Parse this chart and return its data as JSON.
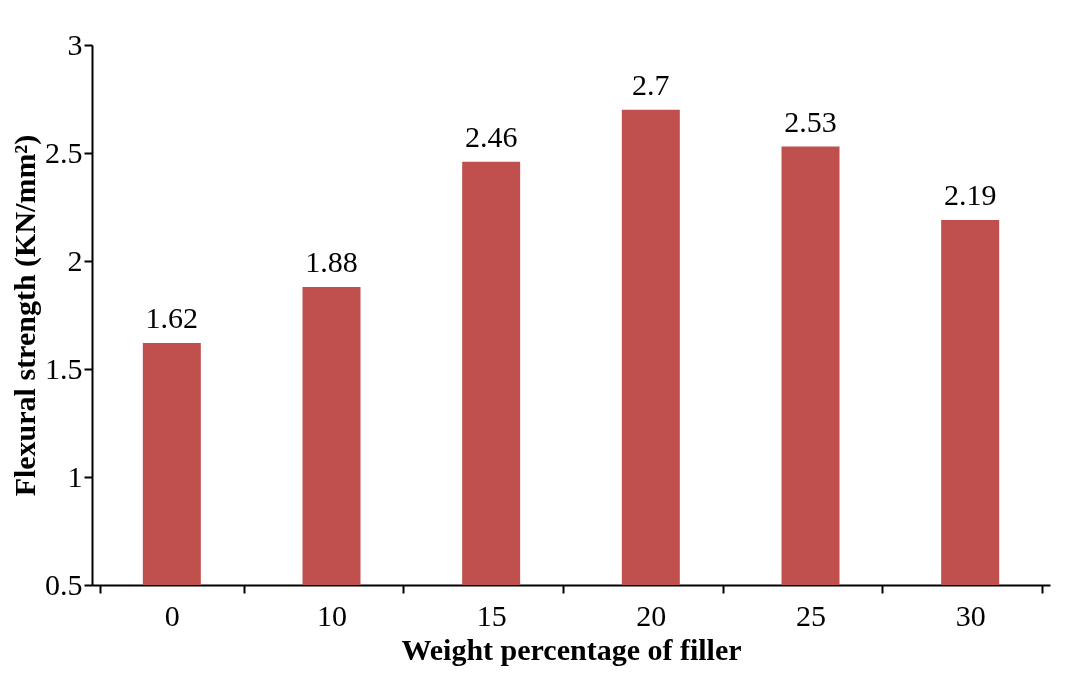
{
  "chart_data": {
    "type": "bar",
    "xlabel": "Weight percentage of filler",
    "ylabel": "Flexural strength (KN/mm²)",
    "categories": [
      "0",
      "10",
      "15",
      "20",
      "25",
      "30"
    ],
    "values": [
      1.62,
      1.88,
      2.46,
      2.7,
      2.53,
      2.19
    ],
    "color": "#c0504d",
    "ylim": [
      0.5,
      3
    ],
    "yticks": [
      0.5,
      1,
      1.5,
      2,
      2.5,
      3
    ],
    "data_labels": true,
    "grid": false
  }
}
